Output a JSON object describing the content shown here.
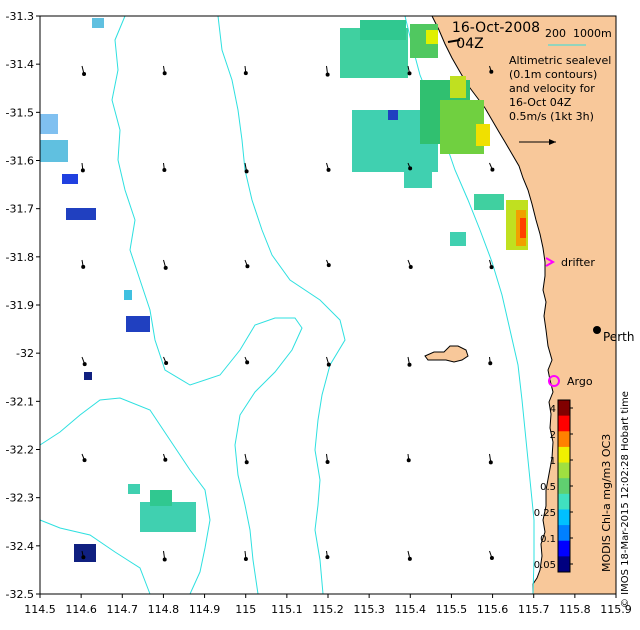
{
  "title": {
    "date": "16-Oct-2008",
    "time": "04Z"
  },
  "depth_contour_legend": "200  1000m",
  "contour_color": "#2ee0e0",
  "land_color": "#f8c89a",
  "info_lines": [
    "Altimetric sealevel",
    "(0.1m contours)",
    "and velocity for",
    "16-Oct 04Z",
    "0.5m/s (1kt 3h)"
  ],
  "x_axis": {
    "ticks": [
      "114.5",
      "114.6",
      "114.7",
      "114.8",
      "114.9",
      "115",
      "115.1",
      "115.2",
      "115.3",
      "115.4",
      "115.5",
      "115.6",
      "115.7",
      "115.8",
      "115.9"
    ],
    "range": [
      114.5,
      115.9
    ]
  },
  "y_axis": {
    "ticks": [
      "-31.3",
      "-31.4",
      "-31.5",
      "-31.6",
      "-31.7",
      "-31.8",
      "-31.9",
      "-32",
      "-32.1",
      "-32.2",
      "-32.3",
      "-32.4",
      "-32.5"
    ],
    "range": [
      -32.5,
      -31.3
    ]
  },
  "places": [
    {
      "name": "drifter",
      "symbol": "magenta-arrow-icon",
      "color": "#ff00ff"
    },
    {
      "name": "Perth",
      "symbol": "black-dot-icon",
      "color": "#000000"
    },
    {
      "name": "Argo",
      "symbol": "magenta-circle-icon",
      "color": "#ff00ff"
    }
  ],
  "colorbar": {
    "label": "MODIS Chl-a mg/m3 OC3",
    "ticks": [
      "4",
      "2",
      "1",
      "0.5",
      "0.25",
      "0.1",
      "0.05"
    ],
    "colors": [
      "#000080",
      "#0000ff",
      "#0080ff",
      "#00c0ff",
      "#40e0c0",
      "#60d070",
      "#a0e040",
      "#f0f000",
      "#ff8000",
      "#ff0000",
      "#800000"
    ]
  },
  "credit": "© IMOS 18-Mar-2015 12:02:28 Hobart time",
  "chart_data": {
    "type": "map",
    "title": "16-Oct-2008 04Z",
    "xlabel": "",
    "ylabel": "",
    "xlim": [
      114.5,
      115.9
    ],
    "ylim": [
      -32.5,
      -31.3
    ],
    "colorbar_label": "MODIS Chl-a mg/m3 OC3",
    "colorbar_ticks": [
      4,
      2,
      1,
      0.5,
      0.25,
      0.1,
      0.05
    ],
    "velocity_scale": "0.5m/s (1kt 3h)"
  }
}
